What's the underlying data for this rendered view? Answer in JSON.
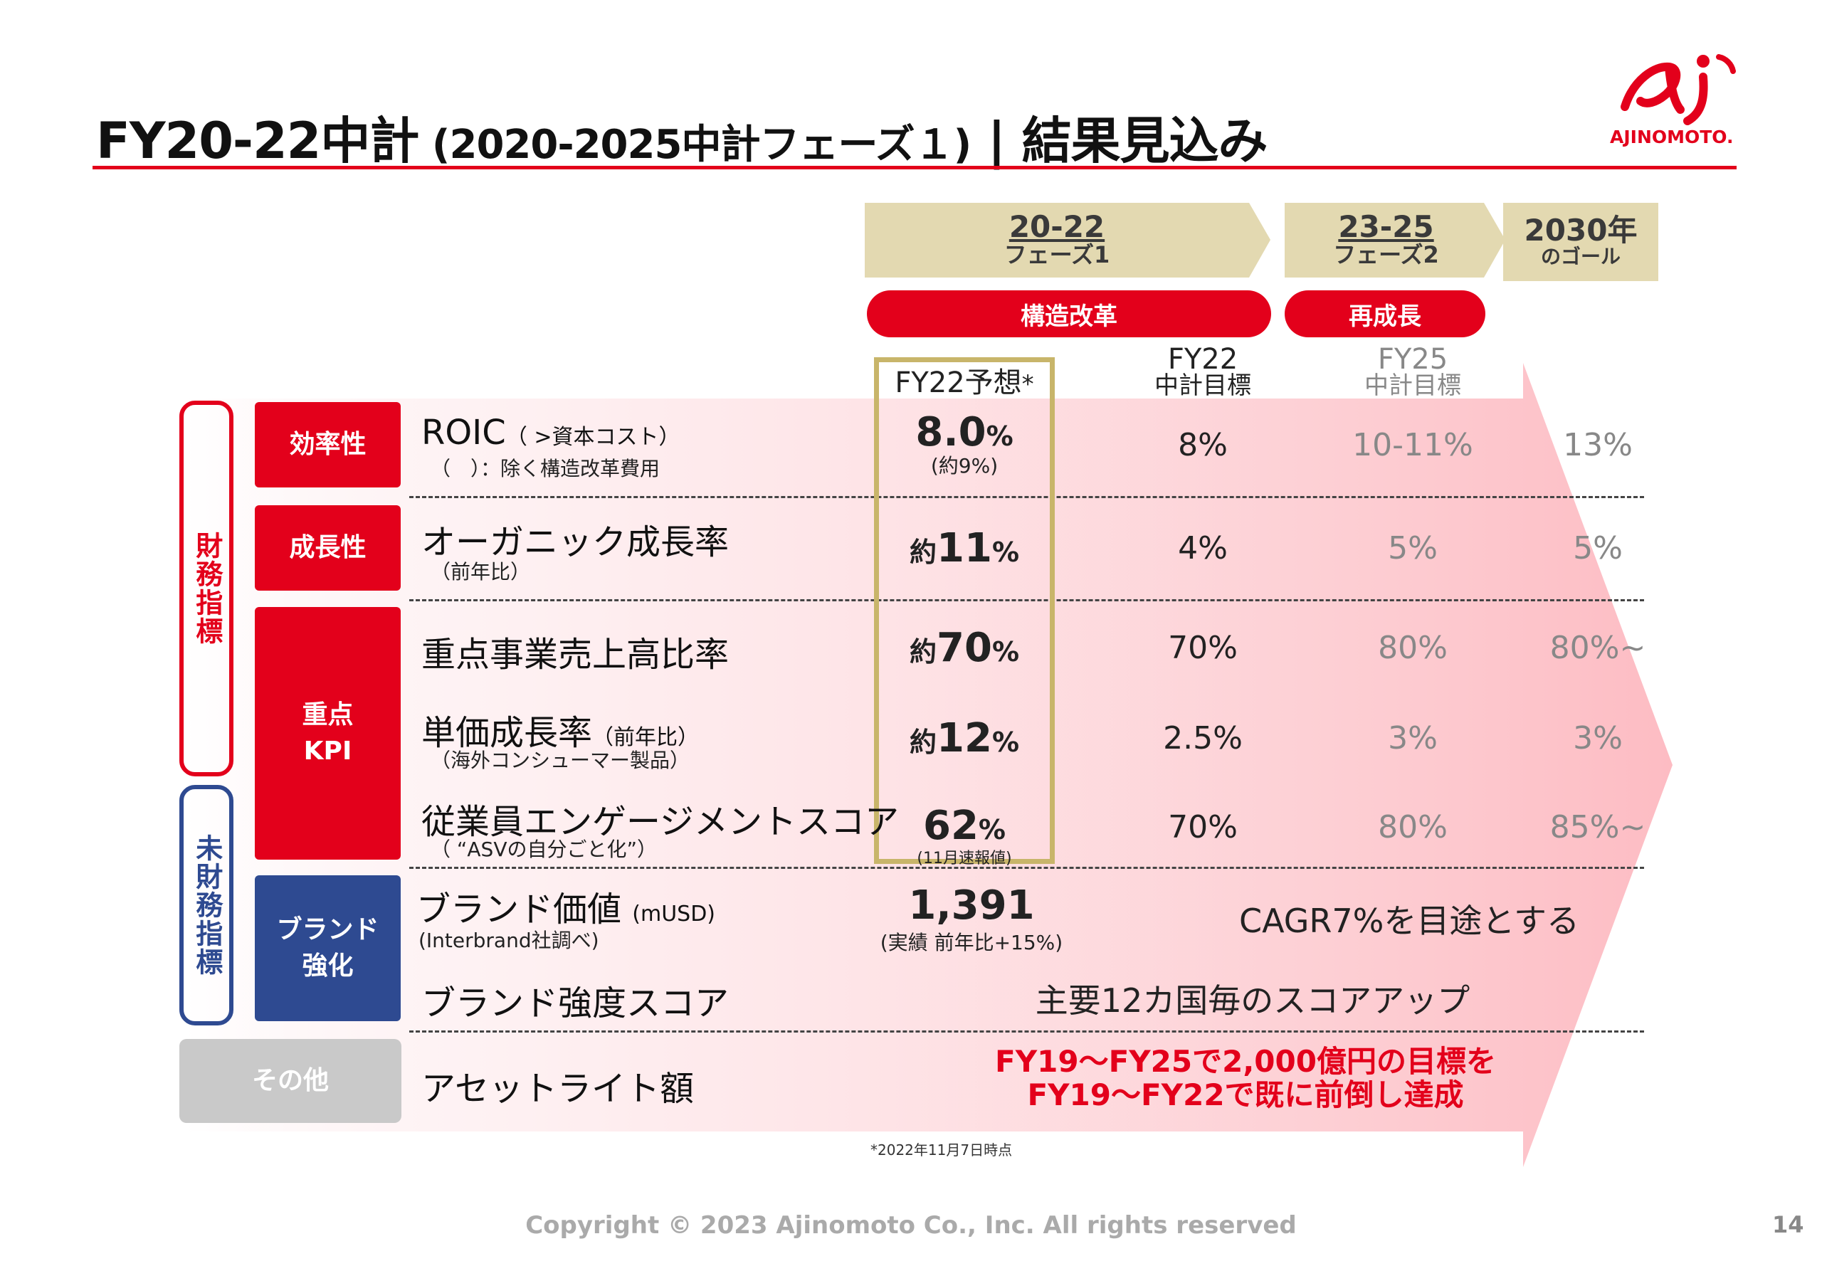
{
  "header": {
    "title_main": "FY20-22中計",
    "title_sub": " (2020-2025中計フェーズ１)",
    "title_sep": " | ",
    "title_tail": "結果見込み",
    "logo_text": "AJINOMOTO."
  },
  "phases": [
    {
      "years": "20-22",
      "name": "フェーズ1"
    },
    {
      "years": "23-25",
      "name": "フェーズ2"
    },
    {
      "years": "2030年",
      "name": "のゴール"
    }
  ],
  "pills": [
    "構造改革",
    "再成長"
  ],
  "columns": {
    "fy22f": "FY22予想",
    "fy22f_mark": "*",
    "fy22t_a": "FY22",
    "fy22t_b": "中計目標",
    "fy25_a": "FY25",
    "fy25_b": "中計目標"
  },
  "groups": {
    "financial": "財務指標",
    "nonfinancial": "未財務指標"
  },
  "categories": {
    "efficiency": "効率性",
    "growth": "成長性",
    "kpi_a": "重点",
    "kpi_b": "KPI",
    "brand_a": "ブランド",
    "brand_b": "強化",
    "other": "その他"
  },
  "rows": [
    {
      "metric": "ROIC",
      "paren": "（ >資本コスト）",
      "note": "（　）：除く構造改革費用",
      "fy22f_pre": "",
      "fy22f_num": "8.0",
      "fy22f_sub": "(約9%)",
      "fy22t": "8%",
      "fy25": "10-11%",
      "goal": "13%"
    },
    {
      "metric": "オーガニック成長率",
      "paren": "",
      "note": "（前年比）",
      "fy22f_pre": "約",
      "fy22f_num": "11",
      "fy22f_sub": "",
      "fy22t": "4%",
      "fy25": "5%",
      "goal": "5%"
    },
    {
      "metric": "重点事業売上高比率",
      "paren": "",
      "note": "",
      "fy22f_pre": "約",
      "fy22f_num": "70",
      "fy22f_sub": "",
      "fy22t": "70%",
      "fy25": "80%",
      "goal": "80%~"
    },
    {
      "metric": "単価成長率",
      "paren": "（前年比）",
      "note": "（海外コンシューマー製品）",
      "fy22f_pre": "約",
      "fy22f_num": "12",
      "fy22f_sub": "",
      "fy22t": "2.5%",
      "fy25": "3%",
      "goal": "3%"
    },
    {
      "metric": "従業員エンゲージメントスコア",
      "paren": "",
      "note": "（ “ASVの自分ごと化”）",
      "fy22f_pre": "",
      "fy22f_num": "62",
      "fy22f_sub": "(11月速報値)",
      "fy22t": "70%",
      "fy25": "80%",
      "goal": "85%~"
    }
  ],
  "pct": "%",
  "brand": {
    "value_metric": "ブランド価値",
    "value_paren": "(mUSD)",
    "value_note": "(Interbrand社調べ)",
    "value_num": "1,391",
    "value_sub": "(実績 前年比+15%)",
    "value_target": "CAGR7%を目途とする",
    "strength_metric": "ブランド強度スコア",
    "strength_target": "主要12カ国毎のスコアアップ"
  },
  "asset": {
    "metric": "アセットライト額",
    "line1": "FY19～FY25で2,000億円の目標を",
    "line2": "FY19～FY22で既に前倒し達成"
  },
  "footnote": "*2022年11月7日時点",
  "footer": {
    "copyright": "Copyright © 2023 Ajinomoto Co., Inc. All rights reserved",
    "page": "14"
  },
  "colors": {
    "brand_red": "#e3001b",
    "navy": "#2e4a91",
    "gold": "#c8b56a",
    "phase_beige": "#e3d9b1",
    "other_gray": "#c9c9c9"
  }
}
